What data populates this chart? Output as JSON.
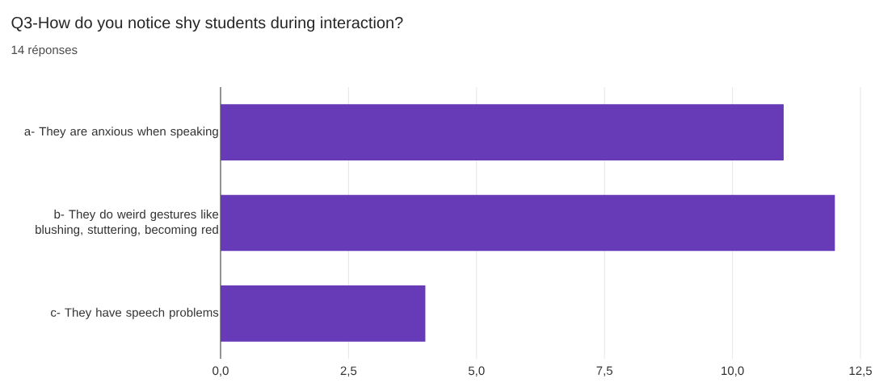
{
  "chart_data": {
    "type": "bar",
    "orientation": "horizontal",
    "title": "Q3-How do you notice shy students during interaction?",
    "subtitle": "14 réponses",
    "categories": [
      "a- They are anxious when speaking",
      "b- They do weird gestures like blushing, stuttering, becoming red",
      "c- They have speech problems"
    ],
    "values": [
      11,
      12,
      4
    ],
    "color": "#673ab7",
    "xlim": [
      0,
      12.5
    ],
    "xticks": [
      {
        "value": 0,
        "label": "0,0"
      },
      {
        "value": 2.5,
        "label": "2,5"
      },
      {
        "value": 5,
        "label": "5,0"
      },
      {
        "value": 7.5,
        "label": "7,5"
      },
      {
        "value": 10,
        "label": "10,0"
      },
      {
        "value": 12.5,
        "label": "12,5"
      }
    ],
    "grid": "x"
  }
}
